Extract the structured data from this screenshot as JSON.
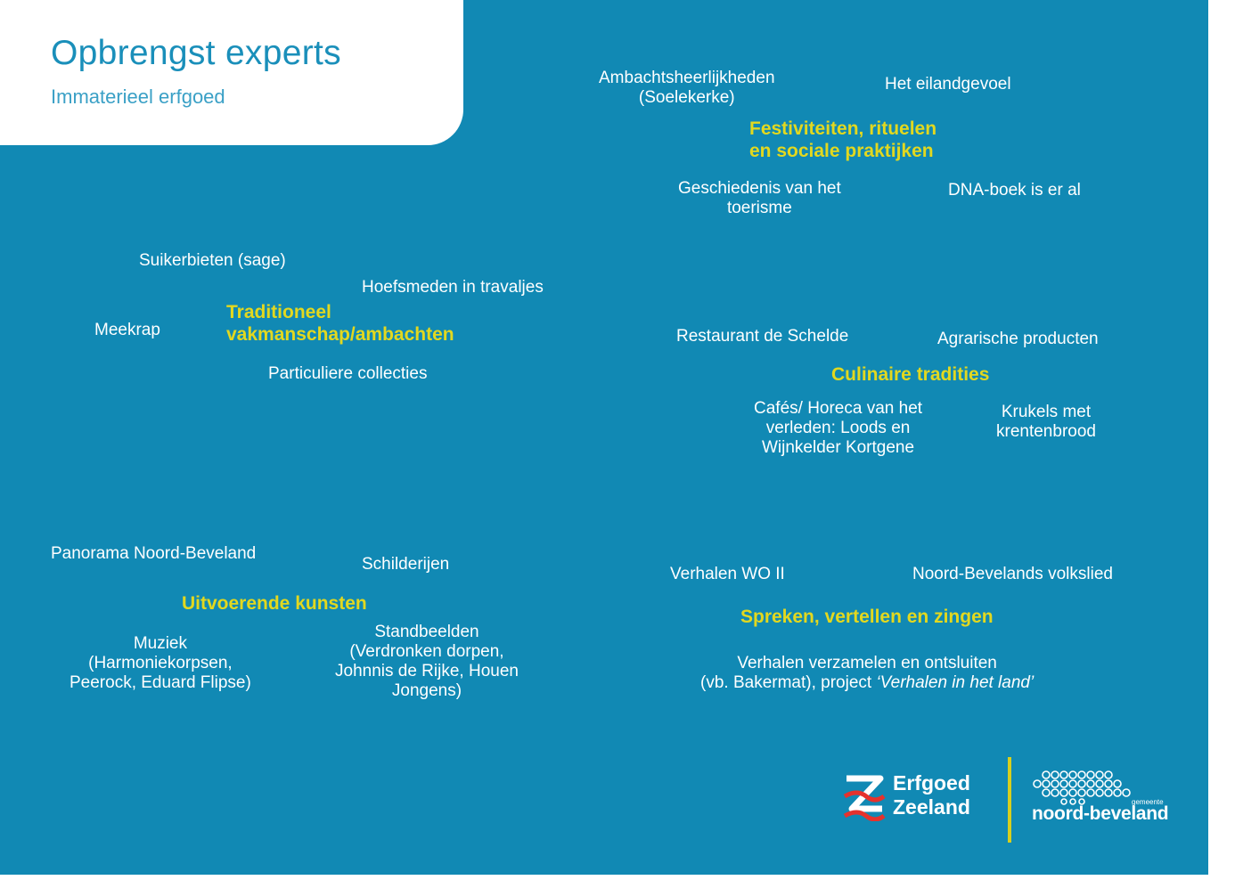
{
  "header": {
    "title": "Opbrengst experts",
    "subtitle": "Immaterieel erfgoed"
  },
  "festiviteiten": {
    "heading": "Festiviteiten, rituelen\nen sociale praktijken",
    "items": [
      "Ambachtsheerlijkheden\n(Soelekerke)",
      "Het eilandgevoel",
      "Geschiedenis van het\ntoerisme",
      "DNA-boek is er al"
    ]
  },
  "vakmanschap": {
    "heading": "Traditioneel\nvakmanschap/ambachten",
    "items": [
      "Suikerbieten (sage)",
      "Hoefsmeden in travaljes",
      "Meekrap",
      "Particuliere collecties"
    ]
  },
  "culinair": {
    "heading": "Culinaire tradities",
    "items": [
      "Restaurant de Schelde",
      "Agrarische producten",
      "Cafés/ Horeca van het\nverleden: Loods en\nWijnkelder Kortgene",
      "Krukels met\nkrentenbrood"
    ]
  },
  "kunsten": {
    "heading": "Uitvoerende kunsten",
    "items": [
      "Panorama Noord-Beveland",
      "Schilderijen",
      "Muziek\n(Harmoniekorpsen,\nPeerock, Eduard Flipse)",
      "Standbeelden\n(Verdronken dorpen,\nJohnnis de Rijke, Houen\nJongens)"
    ]
  },
  "spreken": {
    "heading": "Spreken, vertellen en zingen",
    "items": [
      "Verhalen WO II",
      "Noord-Bevelands volkslied"
    ],
    "verhalen_line1": "Verhalen verzamelen en ontsluiten",
    "verhalen_line2_prefix": "(vb. Bakermat), project ",
    "verhalen_line2_italic": "‘Verhalen in het land’"
  },
  "logos": {
    "erfgoed_zeeland": "Erfgoed\nZeeland",
    "gemeente": "gemeente",
    "noord_beveland": "noord-beveland"
  },
  "colors": {
    "background": "#1189b4",
    "heading": "#e2d81f",
    "title": "#1a8fba"
  }
}
